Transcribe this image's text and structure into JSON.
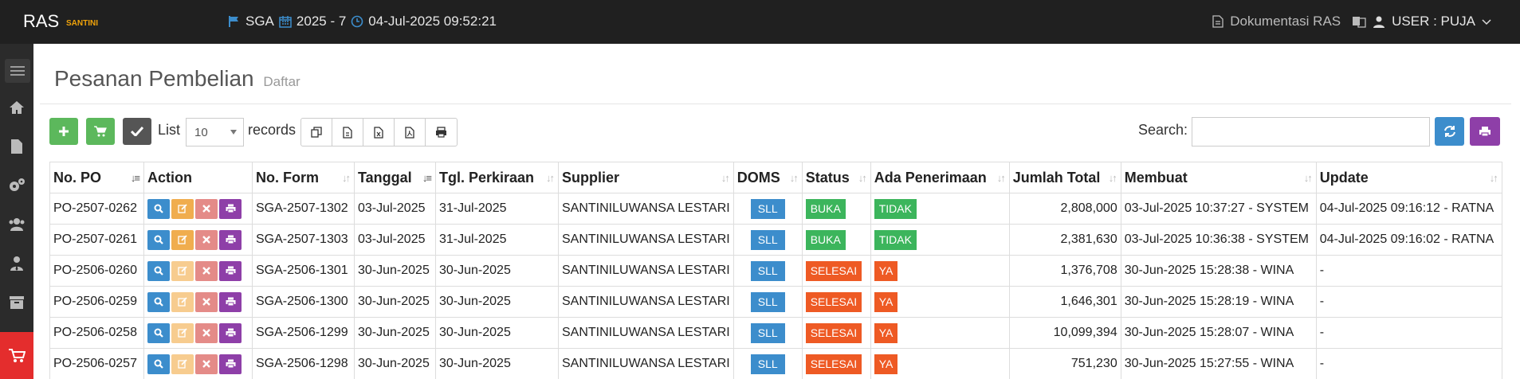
{
  "header": {
    "brand": "RAS",
    "brand_sub": "SANTINI",
    "location": "SGA",
    "period": "2025 - 7",
    "datetime": "04-Jul-2025 09:52:21",
    "docs_label": "Dokumentasi RAS",
    "user_label": "USER : PUJA"
  },
  "page": {
    "title": "Pesanan Pembelian",
    "subtitle": "Daftar"
  },
  "toolbar": {
    "list_label": "List",
    "page_size": "10",
    "records_label": "records",
    "search_label": "Search:",
    "search_value": ""
  },
  "table": {
    "columns": [
      "No. PO",
      "Action",
      "No. Form",
      "Tanggal",
      "Tgl. Perkiraan",
      "Supplier",
      "DOMS",
      "Status",
      "Ada Penerimaan",
      "Jumlah Total",
      "Membuat",
      "Update"
    ],
    "rows": [
      {
        "po": "PO-2507-0262",
        "form": "SGA-2507-1302",
        "tanggal": "03-Jul-2025",
        "perkiraan": "31-Jul-2025",
        "supplier": "SANTINILUWANSA LESTARI",
        "doms": "SLL",
        "status": "BUKA",
        "penerimaan": "TIDAK",
        "total": "2,808,000",
        "membuat": "03-Jul-2025 10:37:27 - SYSTEM",
        "update": "04-Jul-2025 09:16:12 - RATNA"
      },
      {
        "po": "PO-2507-0261",
        "form": "SGA-2507-1303",
        "tanggal": "03-Jul-2025",
        "perkiraan": "31-Jul-2025",
        "supplier": "SANTINILUWANSA LESTARI",
        "doms": "SLL",
        "status": "BUKA",
        "penerimaan": "TIDAK",
        "total": "2,381,630",
        "membuat": "03-Jul-2025 10:36:38 - SYSTEM",
        "update": "04-Jul-2025 09:16:02 - RATNA"
      },
      {
        "po": "PO-2506-0260",
        "form": "SGA-2506-1301",
        "tanggal": "30-Jun-2025",
        "perkiraan": "30-Jun-2025",
        "supplier": "SANTINILUWANSA LESTARI",
        "doms": "SLL",
        "status": "SELESAI",
        "penerimaan": "YA",
        "total": "1,376,708",
        "membuat": "30-Jun-2025 15:28:38 - WINA",
        "update": "-"
      },
      {
        "po": "PO-2506-0259",
        "form": "SGA-2506-1300",
        "tanggal": "30-Jun-2025",
        "perkiraan": "30-Jun-2025",
        "supplier": "SANTINILUWANSA LESTARI",
        "doms": "SLL",
        "status": "SELESAI",
        "penerimaan": "YA",
        "total": "1,646,301",
        "membuat": "30-Jun-2025 15:28:19 - WINA",
        "update": "-"
      },
      {
        "po": "PO-2506-0258",
        "form": "SGA-2506-1299",
        "tanggal": "30-Jun-2025",
        "perkiraan": "30-Jun-2025",
        "supplier": "SANTINILUWANSA LESTARI",
        "doms": "SLL",
        "status": "SELESAI",
        "penerimaan": "YA",
        "total": "10,099,394",
        "membuat": "30-Jun-2025 15:28:07 - WINA",
        "update": "-"
      },
      {
        "po": "PO-2506-0257",
        "form": "SGA-2506-1298",
        "tanggal": "30-Jun-2025",
        "perkiraan": "30-Jun-2025",
        "supplier": "SANTINILUWANSA LESTARI",
        "doms": "SLL",
        "status": "SELESAI",
        "penerimaan": "YA",
        "total": "751,230",
        "membuat": "30-Jun-2025 15:27:55 - WINA",
        "update": "-"
      }
    ]
  },
  "icons": {
    "sidebar": [
      "menu-icon",
      "home-icon",
      "file-icon",
      "cogs-icon",
      "users-icon",
      "user-tie-icon",
      "archive-icon",
      "cart-icon"
    ],
    "actions": [
      "search-icon",
      "edit-icon",
      "delete-icon",
      "print-icon"
    ]
  },
  "colors": {
    "topbar": "#202020",
    "sidebar": "#2b2b2b",
    "active_menu": "#e42d2d",
    "green": "#5cb85c",
    "blue": "#3c8dcc",
    "purple": "#8e3fa8",
    "status_open": "#3cb55c",
    "status_done": "#ee5a24"
  }
}
